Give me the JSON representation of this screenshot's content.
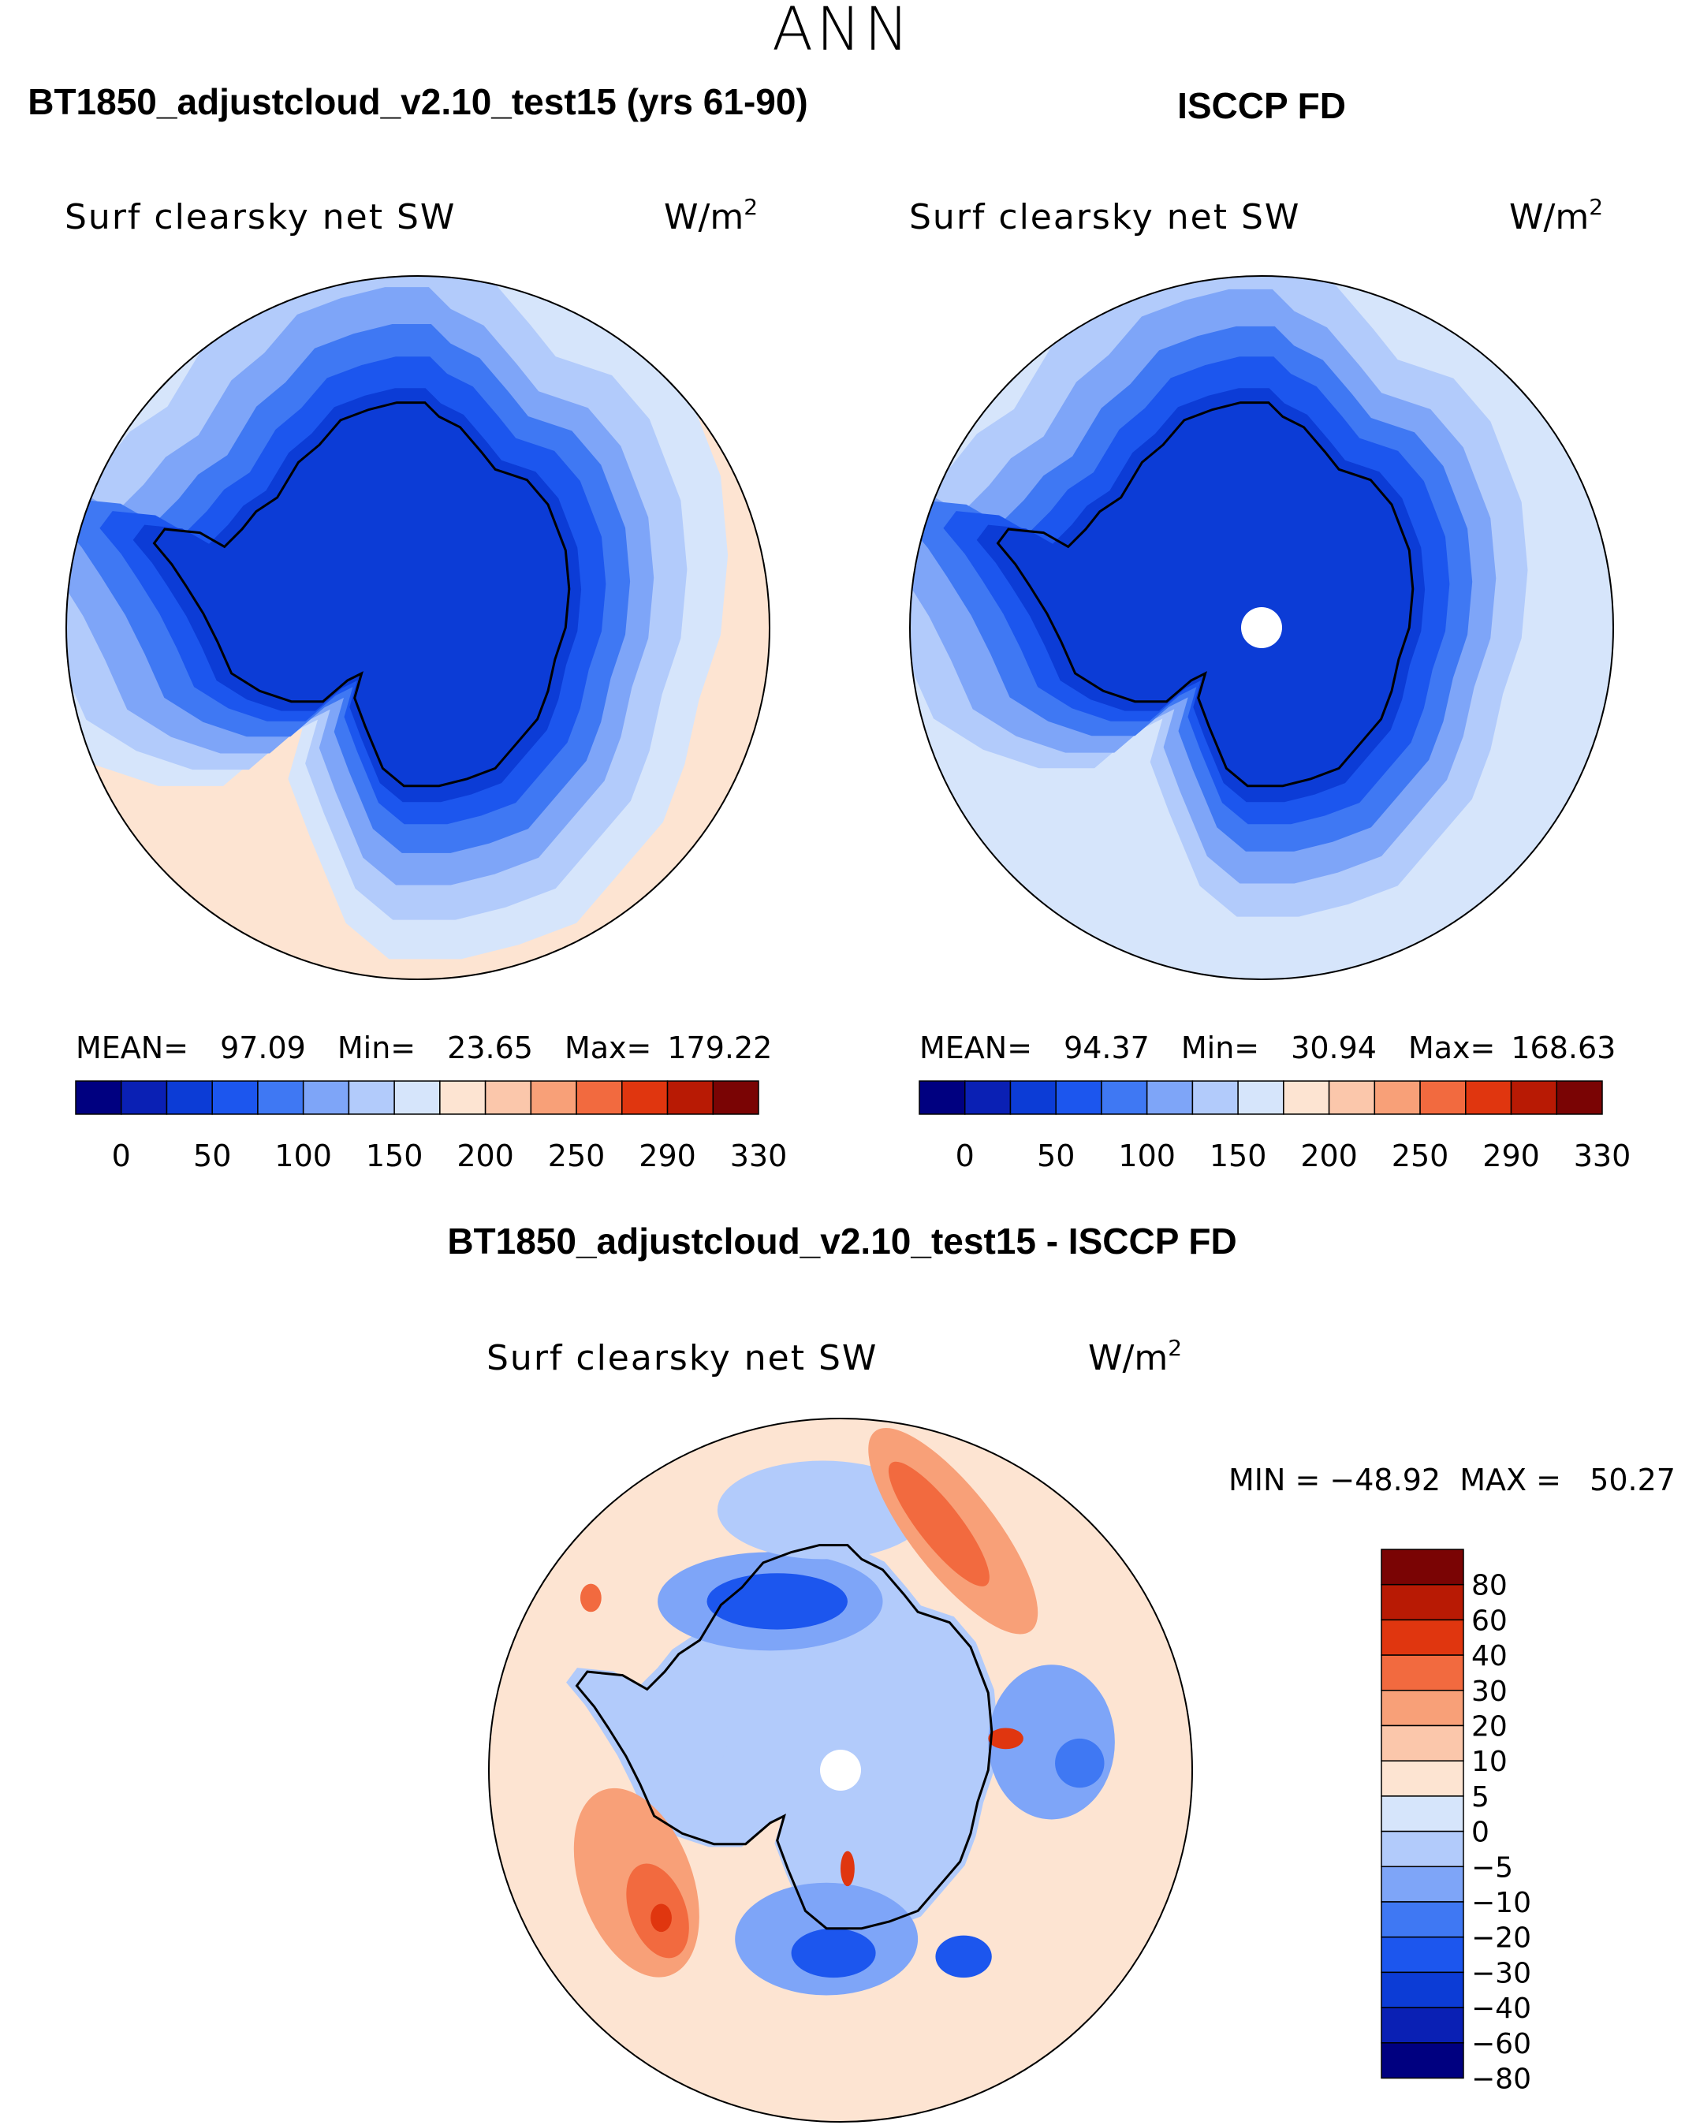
{
  "page_title": "ANN",
  "palette": {
    "abs_fill": [
      "#000080",
      "#0a20b4",
      "#0c3cd6",
      "#1c56ee",
      "#3f78f3",
      "#7ea5f8",
      "#b2cbfb",
      "#d6e5fb",
      "#fde4d2",
      "#fbc7ab",
      "#f8a078",
      "#f26a3f",
      "#e0360f",
      "#b81a04",
      "#7a0404"
    ],
    "diff_fill": [
      "#000080",
      "#0a20b4",
      "#0c3cd6",
      "#1c56ee",
      "#3f78f3",
      "#7ea5f8",
      "#b2cbfb",
      "#d6e5fb",
      "#fde4d2",
      "#fbc7ab",
      "#f8a078",
      "#f26a3f",
      "#e0360f",
      "#b81a04",
      "#7a0404"
    ],
    "coast": "#000000"
  },
  "chart_data": [
    {
      "type": "heatmap",
      "projection": "south polar stereographic",
      "title": "BT1850_adjustcloud_v2.10_test15 (yrs 61-90)",
      "variable": "Surf clearsky net SW",
      "units_base": "W/m",
      "units_exp": "2",
      "stats": {
        "mean_label": "MEAN=",
        "mean": "97.09",
        "min_label": "Min=",
        "min": "23.65",
        "max_label": "Max=",
        "max": "179.22"
      },
      "colorbar_ticks": [
        "0",
        "50",
        "100",
        "150",
        "200",
        "250",
        "290",
        "330"
      ],
      "field_levels_from_coast": [
        23.65,
        40,
        60,
        80,
        100,
        120,
        140,
        160,
        175
      ],
      "missing_pole": false
    },
    {
      "type": "heatmap",
      "projection": "south polar stereographic",
      "title": "ISCCP FD",
      "variable": "Surf clearsky net SW",
      "units_base": "W/m",
      "units_exp": "2",
      "stats": {
        "mean_label": "MEAN=",
        "mean": "94.37",
        "min_label": "Min=",
        "min": "30.94",
        "max_label": "Max=",
        "max": "168.63"
      },
      "colorbar_ticks": [
        "0",
        "50",
        "100",
        "150",
        "200",
        "250",
        "290",
        "330"
      ],
      "field_levels_from_coast": [
        30.94,
        50,
        70,
        90,
        110,
        130,
        150,
        165
      ],
      "missing_pole": true
    },
    {
      "type": "heatmap",
      "projection": "south polar stereographic",
      "title": "BT1850_adjustcloud_v2.10_test15 - ISCCP FD",
      "variable": "Surf clearsky net SW",
      "units_base": "W/m",
      "units_exp": "2",
      "stats_text": "MIN = −48.92  MAX =   50.27",
      "min": -48.92,
      "max": 50.27,
      "colorbar_ticks": [
        "80",
        "60",
        "40",
        "30",
        "20",
        "10",
        "5",
        "0",
        "−5",
        "−10",
        "−20",
        "−30",
        "−40",
        "−60",
        "−80"
      ],
      "missing_pole": true
    }
  ]
}
